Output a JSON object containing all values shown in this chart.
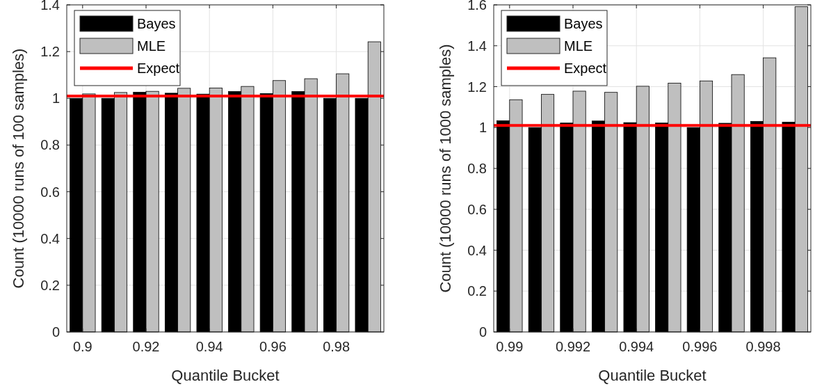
{
  "chart_data": [
    {
      "type": "bar",
      "xlabel": "Quantile Bucket",
      "ylabel": "Count (10000 runs of 100 samples)",
      "x": [
        0.9,
        0.91,
        0.92,
        0.93,
        0.94,
        0.95,
        0.96,
        0.97,
        0.98,
        0.99
      ],
      "xlim": [
        0.895,
        0.995
      ],
      "xticks": [
        0.9,
        0.92,
        0.94,
        0.96,
        0.98
      ],
      "ylim": [
        0,
        1.4
      ],
      "yticks": [
        0,
        0.2,
        0.4,
        0.6,
        0.8,
        1,
        1.2,
        1.4
      ],
      "grid": true,
      "legend": "top left",
      "series": [
        {
          "name": "Bayes",
          "color": "#000000",
          "values": [
            1.0,
            1.0,
            1.026,
            1.022,
            1.018,
            1.029,
            1.02,
            1.029,
            1.0,
            1.0
          ]
        },
        {
          "name": "MLE",
          "color": "#bfbfbf",
          "values": [
            1.019,
            1.025,
            1.03,
            1.043,
            1.044,
            1.051,
            1.076,
            1.084,
            1.105,
            1.242
          ]
        }
      ],
      "ref_lines": [
        {
          "axis": "y",
          "value": 1.01,
          "label": "Expect",
          "color": "#ff0000"
        }
      ]
    },
    {
      "type": "bar",
      "xlabel": "Quantile Bucket",
      "ylabel": "Count (10000 runs of 1000 samples)",
      "x": [
        0.99,
        0.991,
        0.992,
        0.993,
        0.994,
        0.995,
        0.996,
        0.997,
        0.998,
        0.999
      ],
      "xlim": [
        0.9895,
        0.9995
      ],
      "xticks": [
        0.99,
        0.992,
        0.994,
        0.996,
        0.998
      ],
      "ylim": [
        0,
        1.6
      ],
      "yticks": [
        0,
        0.2,
        0.4,
        0.6,
        0.8,
        1,
        1.2,
        1.4,
        1.6
      ],
      "grid": true,
      "legend": "top left",
      "series": [
        {
          "name": "Bayes",
          "color": "#000000",
          "values": [
            1.033,
            1.0,
            1.022,
            1.032,
            1.024,
            1.022,
            1.0,
            1.021,
            1.03,
            1.026
          ]
        },
        {
          "name": "MLE",
          "color": "#bfbfbf",
          "values": [
            1.136,
            1.162,
            1.178,
            1.172,
            1.202,
            1.217,
            1.228,
            1.259,
            1.341,
            1.591
          ]
        }
      ],
      "ref_lines": [
        {
          "axis": "y",
          "value": 1.01,
          "label": "Expect",
          "color": "#ff0000"
        }
      ]
    }
  ]
}
